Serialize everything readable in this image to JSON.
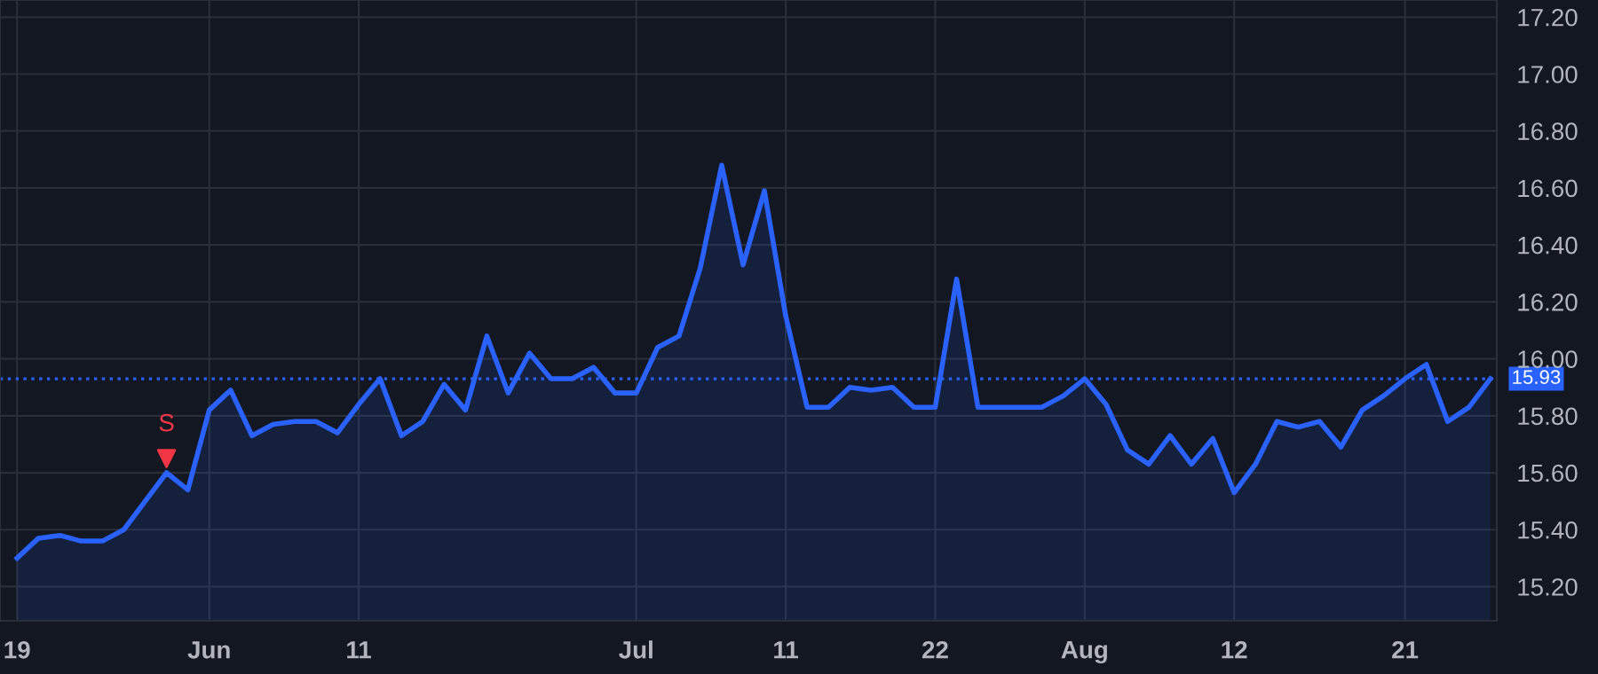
{
  "chart_data": {
    "type": "area",
    "categories": [
      "19",
      null,
      null,
      null,
      null,
      null,
      null,
      null,
      null,
      "Jun",
      null,
      null,
      null,
      null,
      null,
      null,
      "11",
      null,
      null,
      null,
      null,
      null,
      null,
      null,
      null,
      null,
      null,
      null,
      null,
      "Jul",
      null,
      null,
      null,
      null,
      null,
      null,
      "11",
      null,
      null,
      null,
      null,
      null,
      null,
      "22",
      null,
      null,
      null,
      null,
      null,
      null,
      "Aug",
      null,
      null,
      null,
      null,
      null,
      null,
      "12",
      null,
      null,
      null,
      null,
      null,
      null,
      null,
      "21",
      null,
      null,
      null,
      null
    ],
    "series": [
      {
        "color": "#2962ff",
        "values": [
          15.3,
          15.37,
          15.38,
          15.36,
          15.36,
          15.4,
          15.5,
          15.6,
          15.54,
          15.82,
          15.89,
          15.73,
          15.77,
          15.78,
          15.78,
          15.74,
          15.84,
          15.93,
          15.73,
          15.78,
          15.91,
          15.82,
          16.08,
          15.88,
          16.02,
          15.93,
          15.93,
          15.97,
          15.88,
          15.88,
          16.04,
          16.08,
          16.32,
          16.68,
          16.33,
          16.59,
          16.15,
          15.83,
          15.83,
          15.9,
          15.89,
          15.9,
          15.83,
          15.83,
          16.28,
          15.83,
          15.83,
          15.83,
          15.83,
          15.87,
          15.93,
          15.84,
          15.68,
          15.63,
          15.73,
          15.63,
          15.72,
          15.53,
          15.63,
          15.78,
          15.76,
          15.78,
          15.69,
          15.82,
          15.87,
          15.93,
          15.98,
          15.78,
          15.83,
          15.93
        ]
      },
      {
        "type": "scatter",
        "color": "#f23645",
        "marker": "triangle",
        "values": [
          null,
          null,
          null,
          null,
          null,
          null,
          null,
          15.65,
          null,
          null,
          null,
          null,
          null,
          null,
          null,
          null,
          null,
          null,
          null,
          null,
          null,
          null,
          null,
          null,
          null,
          null,
          null,
          null,
          null,
          null,
          null,
          null,
          null,
          null,
          null,
          null,
          null,
          null,
          null,
          null,
          null,
          null,
          null,
          null,
          null,
          null,
          null,
          null,
          null,
          null,
          null,
          null,
          null,
          null,
          null,
          null,
          null,
          null,
          null,
          null,
          null,
          null,
          null,
          null,
          null,
          null,
          null,
          null,
          null,
          null
        ]
      }
    ],
    "annotations": [
      "S"
    ],
    "ylim": [
      15.08,
      17.26
    ],
    "yticks": [
      {
        "value": 15.2,
        "label": "15.20"
      },
      {
        "value": 15.4,
        "label": "15.40"
      },
      {
        "value": 15.6,
        "label": "15.60"
      },
      {
        "value": 15.8,
        "label": "15.80"
      },
      {
        "value": 16.0,
        "label": "16.00"
      },
      {
        "value": 16.2,
        "label": "16.20"
      },
      {
        "value": 16.4,
        "label": "16.40"
      },
      {
        "value": 16.6,
        "label": "16.60"
      },
      {
        "value": 16.8,
        "label": "16.80"
      },
      {
        "value": 17.0,
        "label": "17.00"
      },
      {
        "value": 17.2,
        "label": "17.20"
      }
    ],
    "ref_lines": [
      {
        "axis": "y",
        "value": 15.93,
        "label": "15.93",
        "color": "#2962ff",
        "line_style": "dotted"
      }
    ],
    "grid": true
  }
}
